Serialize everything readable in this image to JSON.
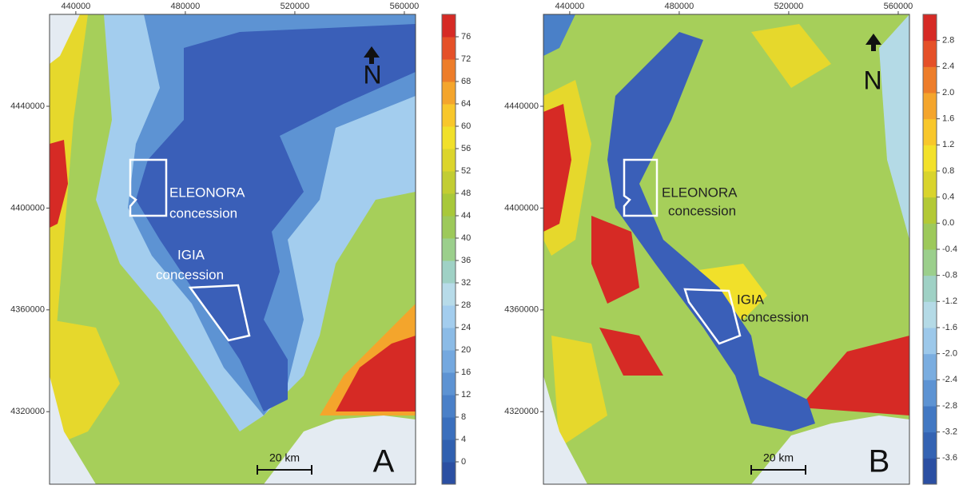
{
  "panels": [
    {
      "label": "A",
      "xlim": [
        430400,
        564100
      ],
      "ylim": [
        4291500,
        4476100
      ],
      "xticks": [
        440000,
        480000,
        520000,
        560000
      ],
      "yticks": [
        4320000,
        4360000,
        4400000,
        4440000
      ],
      "colorbar": {
        "lim": [
          -4,
          80
        ],
        "ticks": [
          0,
          4,
          8,
          12,
          16,
          20,
          24,
          28,
          32,
          36,
          40,
          44,
          48,
          52,
          56,
          60,
          64,
          68,
          72,
          76
        ],
        "colors": [
          "#2b4fa2",
          "#3060b0",
          "#3a6fbd",
          "#4a80c8",
          "#5d93d3",
          "#74a8df",
          "#8bbbe6",
          "#a3cdee",
          "#b7dbe9",
          "#9fd1c5",
          "#9bcf8c",
          "#9dc95a",
          "#a8c83a",
          "#c2cd33",
          "#dcd52c",
          "#f1e02a",
          "#f8c72b",
          "#f4a52c",
          "#ed7d2a",
          "#e55028",
          "#d62a25"
        ]
      },
      "annotations": [
        "ELEONORA",
        "concession",
        "IGIA",
        "concession"
      ],
      "north": "N",
      "scale_bar": "20 km"
    },
    {
      "label": "B",
      "xlim": [
        430400,
        564100
      ],
      "ylim": [
        4291500,
        4476100
      ],
      "xticks": [
        440000,
        480000,
        520000,
        560000
      ],
      "yticks": [
        4320000,
        4360000,
        4400000,
        4440000
      ],
      "colorbar": {
        "lim": [
          -4,
          3.2
        ],
        "ticks": [
          -3.6,
          -3.2,
          -2.8,
          -2.4,
          {
            "value": -2,
            "label": "-2.0"
          },
          -1.6,
          -1.2,
          -0.8,
          -0.4,
          {
            "value": 0,
            "label": "0.0"
          },
          0.4,
          0.8,
          1.2,
          1.6,
          {
            "value": 2,
            "label": "2.0"
          },
          2.4,
          2.8
        ],
        "colors": [
          "#2b4fa2",
          "#3463b3",
          "#4278c3",
          "#5d93d3",
          "#7aade0",
          "#9cc8ea",
          "#b4dae6",
          "#9fd1c5",
          "#9bcf8c",
          "#9dc95a",
          "#b3c935",
          "#d9d42c",
          "#f3e12a",
          "#f8c72b",
          "#f4a52c",
          "#ed7d2a",
          "#e55028",
          "#d62a25"
        ]
      },
      "annotations": [
        "ELEONORA",
        "concession",
        "IGIA",
        "concession"
      ],
      "north": "N",
      "scale_bar": "20 km"
    }
  ]
}
